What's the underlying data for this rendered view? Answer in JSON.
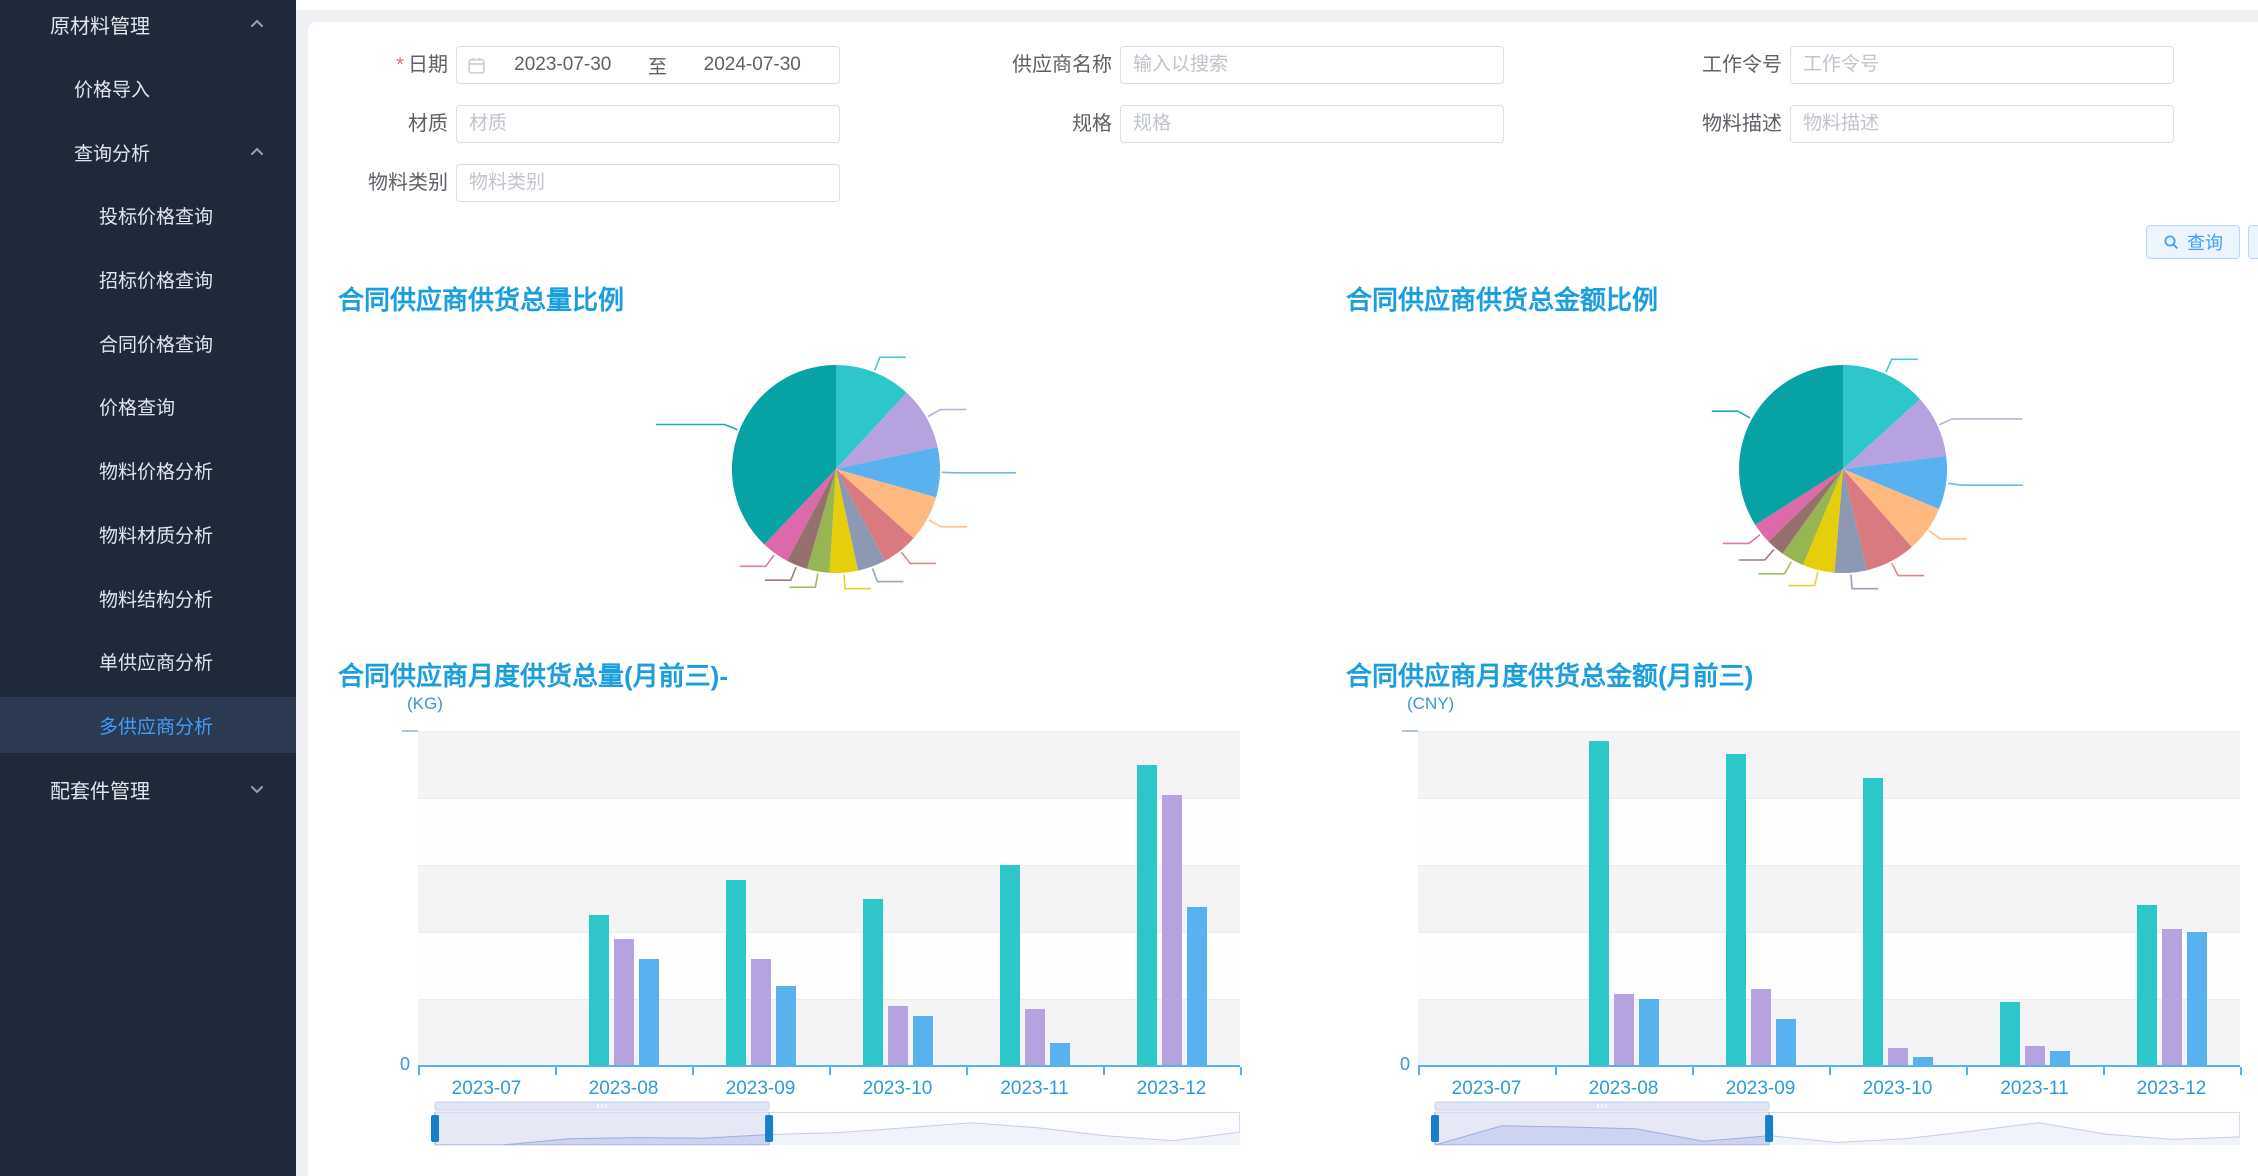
{
  "ui": {
    "accent_blue": "#409eff",
    "title_blue": "#1b9ede",
    "axis_label_blue": "#2e9bd6",
    "axis_line_blue": "#56b1ec",
    "sidebar_bg": "#1e2a3a",
    "sidebar_selected_bg": "#2b3a50",
    "required_red": "#f56c6c",
    "series_palette": [
      "#2ec7c9",
      "#b6a2de",
      "#5ab1ef"
    ]
  },
  "sidebar": {
    "items": [
      {
        "label": "原材料管理",
        "level": 1,
        "chevron": "up",
        "selected": false
      },
      {
        "label": "价格导入",
        "level": 2,
        "selected": false
      },
      {
        "label": "查询分析",
        "level": 2,
        "chevron": "up",
        "selected": false
      },
      {
        "label": "投标价格查询",
        "level": 3,
        "selected": false
      },
      {
        "label": "招标价格查询",
        "level": 3,
        "selected": false
      },
      {
        "label": "合同价格查询",
        "level": 3,
        "selected": false
      },
      {
        "label": "价格查询",
        "level": 3,
        "selected": false
      },
      {
        "label": "物料价格分析",
        "level": 3,
        "selected": false
      },
      {
        "label": "物料材质分析",
        "level": 3,
        "selected": false
      },
      {
        "label": "物料结构分析",
        "level": 3,
        "selected": false
      },
      {
        "label": "单供应商分析",
        "level": 3,
        "selected": false
      },
      {
        "label": "多供应商分析",
        "level": 3,
        "selected": true
      },
      {
        "label": "配套件管理",
        "level": 1,
        "chevron": "down",
        "selected": false
      }
    ]
  },
  "form": {
    "date_field": {
      "label": "日期",
      "required_mark": "*",
      "start": "2023-07-30",
      "separator": "至",
      "end": "2024-07-30"
    },
    "fields": [
      {
        "key": "supplier-name",
        "label": "供应商名称",
        "placeholder": "输入以搜索"
      },
      {
        "key": "work-order",
        "label": "工作令号",
        "placeholder": "工作令号"
      },
      {
        "key": "material",
        "label": "材质",
        "placeholder": "材质"
      },
      {
        "key": "spec",
        "label": "规格",
        "placeholder": "规格"
      },
      {
        "key": "material-desc",
        "label": "物料描述",
        "placeholder": "物料描述"
      },
      {
        "key": "material-category",
        "label": "物料类别",
        "placeholder": "物料类别"
      }
    ],
    "query_button": "查询"
  },
  "chart_data": [
    {
      "type": "pie",
      "title": "合同供应商供货总量比例",
      "legend_position": "none",
      "labels_visible": false,
      "note": "slice labels are rendered white/invisible in source; pct estimated from arc angles",
      "slices": [
        {
          "label": "",
          "pct": 11.9,
          "color": "#2ec7c9"
        },
        {
          "label": "",
          "pct": 9.7,
          "color": "#b6a2de"
        },
        {
          "label": "",
          "pct": 7.8,
          "color": "#5ab1ef"
        },
        {
          "label": "",
          "pct": 7.2,
          "color": "#ffb980"
        },
        {
          "label": "",
          "pct": 5.6,
          "color": "#d87a80"
        },
        {
          "label": "",
          "pct": 4.4,
          "color": "#8d98b3"
        },
        {
          "label": "",
          "pct": 4.4,
          "color": "#e5cf0d"
        },
        {
          "label": "",
          "pct": 3.5,
          "color": "#97b552"
        },
        {
          "label": "",
          "pct": 3.3,
          "color": "#95706d"
        },
        {
          "label": "",
          "pct": 4.3,
          "color": "#dc69aa"
        },
        {
          "label": "",
          "pct": 37.9,
          "color": "#07a2a4"
        }
      ]
    },
    {
      "type": "pie",
      "title": "合同供应商供货总金额比例",
      "legend_position": "none",
      "labels_visible": false,
      "note": "slice labels are rendered white/invisible in source; pct estimated from arc angles",
      "slices": [
        {
          "label": "",
          "pct": 13.3,
          "color": "#2ec7c9"
        },
        {
          "label": "",
          "pct": 9.7,
          "color": "#b6a2de"
        },
        {
          "label": "",
          "pct": 8.3,
          "color": "#5ab1ef"
        },
        {
          "label": "",
          "pct": 7.2,
          "color": "#ffb980"
        },
        {
          "label": "",
          "pct": 7.8,
          "color": "#d87a80"
        },
        {
          "label": "",
          "pct": 5.0,
          "color": "#8d98b3"
        },
        {
          "label": "",
          "pct": 5.0,
          "color": "#e5cf0d"
        },
        {
          "label": "",
          "pct": 3.6,
          "color": "#97b552"
        },
        {
          "label": "",
          "pct": 2.8,
          "color": "#95706d"
        },
        {
          "label": "",
          "pct": 3.3,
          "color": "#dc69aa"
        },
        {
          "label": "",
          "pct": 34.0,
          "color": "#07a2a4"
        }
      ]
    },
    {
      "type": "bar",
      "title": "合同供应商月度供货总量(月前三)-",
      "ylabel": "(KG)",
      "ymin_label": "0",
      "note": "y-axis numeric labels not visible in source; values are % of plot height",
      "categories": [
        "2023-07",
        "2023-08",
        "2023-09",
        "2023-10",
        "2023-11",
        "2023-12"
      ],
      "series": [
        {
          "name": "",
          "color": "#2ec7c9",
          "values_pct": [
            0,
            45,
            55.5,
            50,
            60,
            90
          ]
        },
        {
          "name": "",
          "color": "#b6a2de",
          "values_pct": [
            0,
            38,
            32,
            18,
            17,
            81
          ]
        },
        {
          "name": "",
          "color": "#5ab1ef",
          "values_pct": [
            0,
            32,
            24,
            15,
            7,
            47.5
          ]
        }
      ],
      "datazoom": {
        "window_pct": [
          0,
          41.5
        ],
        "shadow_pct": [
          0,
          0,
          20,
          24,
          22,
          34,
          40,
          55,
          72,
          55,
          30,
          14,
          42
        ]
      }
    },
    {
      "type": "bar",
      "title": "合同供应商月度供货总金额(月前三)",
      "ylabel": "(CNY)",
      "ymin_label": "0",
      "note": "y-axis numeric labels not visible in source; values are % of plot height",
      "categories": [
        "2023-07",
        "2023-08",
        "2023-09",
        "2023-10",
        "2023-11",
        "2023-12"
      ],
      "series": [
        {
          "name": "",
          "color": "#2ec7c9",
          "values_pct": [
            0,
            97,
            93,
            86,
            19,
            48
          ]
        },
        {
          "name": "",
          "color": "#b6a2de",
          "values_pct": [
            0,
            21.5,
            23,
            5.5,
            6,
            41
          ]
        },
        {
          "name": "",
          "color": "#5ab1ef",
          "values_pct": [
            0,
            20,
            14,
            2.7,
            4.5,
            40
          ]
        }
      ],
      "datazoom": {
        "window_pct": [
          0,
          41.5
        ],
        "shadow_pct": [
          0,
          62,
          58,
          52,
          12,
          30,
          8,
          20,
          45,
          72,
          35,
          18,
          26
        ]
      }
    }
  ]
}
